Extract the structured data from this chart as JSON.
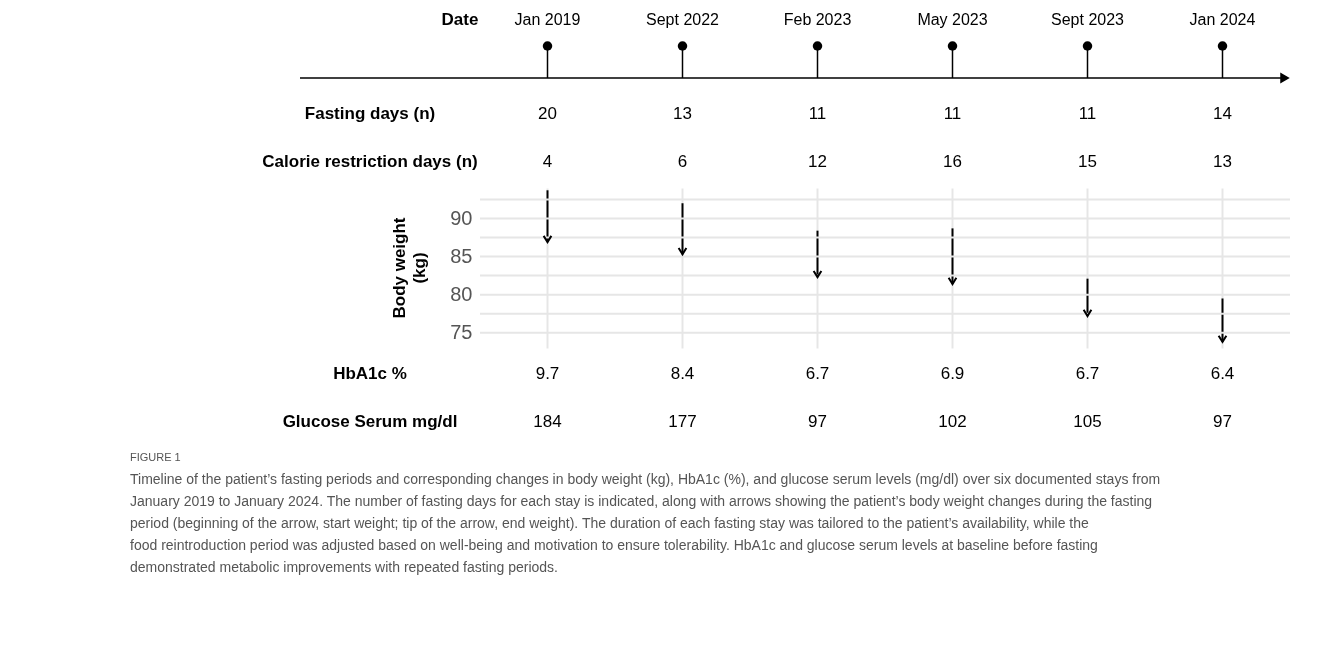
{
  "chart_data": [
    {
      "type": "other",
      "ylabel": "Date",
      "categories": [
        "Jan 2019",
        "Sept 2022",
        "Feb 2023",
        "May 2023",
        "Sept 2023",
        "Jan 2024"
      ]
    },
    {
      "type": "other",
      "ylabel": "Fasting days (n)",
      "categories": [
        null,
        null,
        null,
        null,
        null,
        null
      ],
      "values": [
        20,
        13,
        11,
        11,
        11,
        14
      ],
      "data_labels": true
    },
    {
      "type": "other",
      "ylabel": "Calorie restriction days (n)",
      "categories": [
        null,
        null,
        null,
        null,
        null,
        null
      ],
      "values": [
        4,
        6,
        12,
        16,
        15,
        13
      ],
      "data_labels": true
    },
    {
      "type": "bar",
      "ylabel": "Body weight\n(kg)",
      "categories": [
        null,
        null,
        null,
        null,
        null,
        null
      ],
      "tick_labels": "y",
      "color": "#000000",
      "base": [
        93.7,
        92.0,
        88.4,
        88.7,
        82.1,
        79.5
      ],
      "values": [
        -6.8,
        -6.7,
        -6.1,
        -7.3,
        -4.9,
        -5.7
      ],
      "ylim": [
        73,
        94
      ],
      "yticks": [
        75,
        {
          "value": 77.5,
          "label": null
        },
        80,
        {
          "value": 82.5,
          "label": null
        },
        85,
        {
          "value": 87.5,
          "label": null
        },
        90,
        {
          "value": 92.5,
          "label": null
        }
      ],
      "grid": true
    },
    {
      "type": "other",
      "ylabel": "HbA1c %",
      "categories": [
        null,
        null,
        null,
        null,
        null,
        null
      ],
      "values": [
        9.7,
        8.4,
        6.7,
        6.9,
        6.7,
        6.4
      ],
      "data_labels": true
    },
    {
      "type": "other",
      "ylabel": "Glucose Serum mg/dl",
      "categories": [
        null,
        null,
        null,
        null,
        null,
        null
      ],
      "values": [
        184,
        177,
        97,
        102,
        105,
        97
      ],
      "data_labels": true
    },
    {
      "type": "other",
      "annotations": [
        "FIGURE 1",
        "Timeline of the patient’s fasting periods and corresponding changes in body weight (kg), HbA1c (%), and glucose serum levels (mg/dl) over six documented stays from January 2019 to January 2024. The number of fasting days for each stay is indicated, along with arrows showing the patient’s body weight changes during the fasting period (beginning of the arrow, start weight; tip of the arrow, end weight). The duration of each fasting stay was tailored to the patient’s availability, while the food reintroduction period was adjusted based on well-being and motivation to ensure tolerability. HbA1c and glucose serum levels at baseline before fasting demonstrated metabolic improvements with repeated fasting periods."
      ]
    }
  ]
}
